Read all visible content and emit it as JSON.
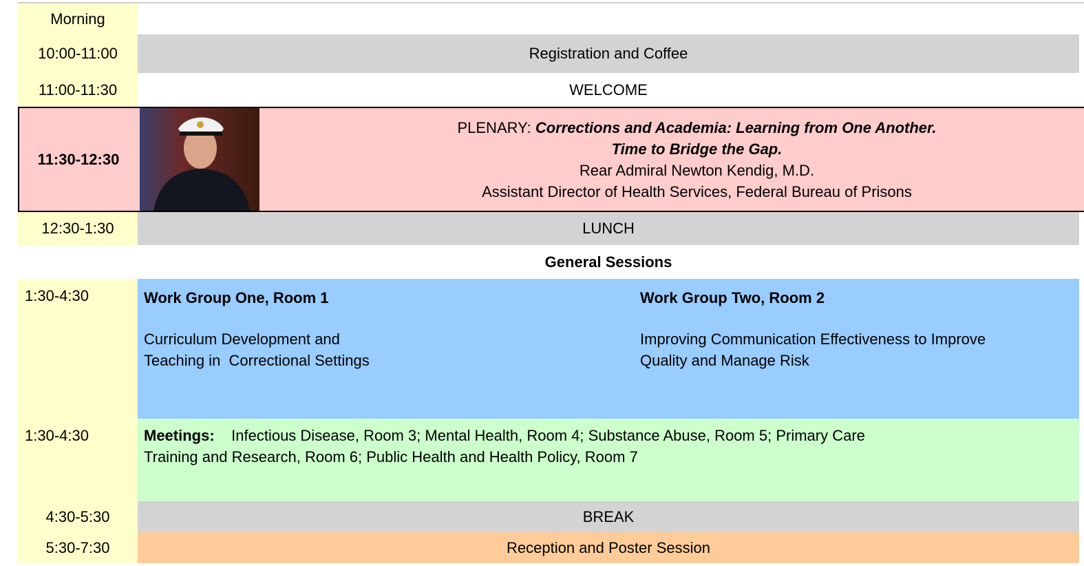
{
  "schedule": {
    "morning": {
      "time": "Morning"
    },
    "registration": {
      "time": "10:00-11:00",
      "content": "Registration and Coffee"
    },
    "welcome": {
      "time": "11:00-11:30",
      "content": "WELCOME"
    },
    "plenary": {
      "time": "11:30-12:30",
      "label": "PLENARY:",
      "title_line1": "Corrections and Academia: Learning from One Another.",
      "title_line2": "Time to Bridge the Gap.",
      "speaker": "Rear Admiral Newton Kendig, M.D.",
      "position": "Assistant Director of Health Services, Federal Bureau of Prisons"
    },
    "lunch": {
      "time": "12:30-1:30",
      "content": "LUNCH"
    },
    "general_sessions": {
      "heading": "General Sessions"
    },
    "work_groups": {
      "time": "1:30-4:30",
      "group_one": {
        "heading": "Work Group One, Room 1",
        "line1": "Curriculum Development and",
        "line2": "Teaching in  Correctional Settings"
      },
      "group_two": {
        "heading": "Work Group Two, Room 2",
        "line1": "Improving Communication Effectiveness to Improve",
        "line2": "Quality and Manage Risk"
      }
    },
    "meetings": {
      "time": "1:30-4:30",
      "label": "Meetings:",
      "line1": "Infectious Disease, Room 3; Mental Health, Room 4; Substance Abuse, Room 5; Primary Care",
      "line2": "Training and Research, Room 6; Public Health and Health Policy, Room 7"
    },
    "break": {
      "time": "4:30-5:30",
      "content": "BREAK"
    },
    "reception": {
      "time": "5:30-7:30",
      "content": "Reception and Poster Session"
    }
  }
}
